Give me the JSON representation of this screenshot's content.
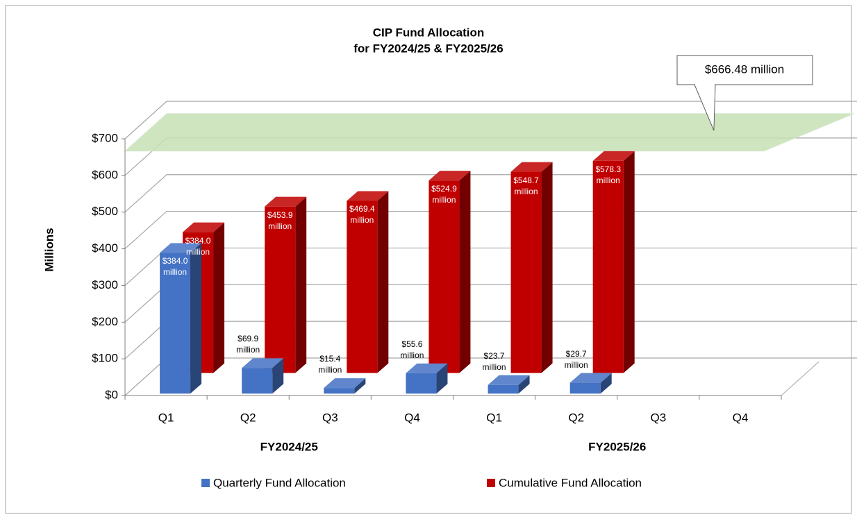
{
  "chart_data": {
    "type": "bar3d",
    "title": [
      "CIP Fund Allocation",
      "for FY2024/25 & FY2025/26"
    ],
    "y_label": "Millions",
    "categories": [
      "Q1",
      "Q2",
      "Q3",
      "Q4",
      "Q1",
      "Q2",
      "Q3",
      "Q4"
    ],
    "group_labels": [
      "FY2024/25",
      "FY2025/26"
    ],
    "series": [
      {
        "name": "Quarterly Fund Allocation",
        "color": "#4472c4",
        "values": [
          384.0,
          69.9,
          15.4,
          55.6,
          23.7,
          29.7,
          null,
          null
        ],
        "value_labels": [
          "$384.0 million",
          "$69.9 million",
          "$15.4 million",
          "$55.6 million",
          "$23.7 million",
          "$29.7 million",
          null,
          null
        ]
      },
      {
        "name": "Cumulative Fund Allocation",
        "color": "#c00000",
        "values": [
          384.0,
          453.9,
          469.4,
          524.9,
          548.7,
          578.3,
          null,
          null
        ],
        "value_labels": [
          "$384.0 million",
          "$453.9 million",
          "$469.4 million",
          "$524.9 million",
          "$548.7 million",
          "$578.3 million",
          null,
          null
        ]
      }
    ],
    "target": {
      "value": 666.48,
      "label": "$666.48 million",
      "color": "#c6e0b4"
    },
    "ylim": [
      0,
      700
    ],
    "yticks": [
      {
        "value": 0,
        "label": "$0"
      },
      {
        "value": 100,
        "label": "$100"
      },
      {
        "value": 200,
        "label": "$200"
      },
      {
        "value": 300,
        "label": "$300"
      },
      {
        "value": 400,
        "label": "$400"
      },
      {
        "value": 500,
        "label": "$500"
      },
      {
        "value": 600,
        "label": "$600"
      },
      {
        "value": 700,
        "label": "$700"
      }
    ],
    "grid": true,
    "legend": "bottom"
  }
}
